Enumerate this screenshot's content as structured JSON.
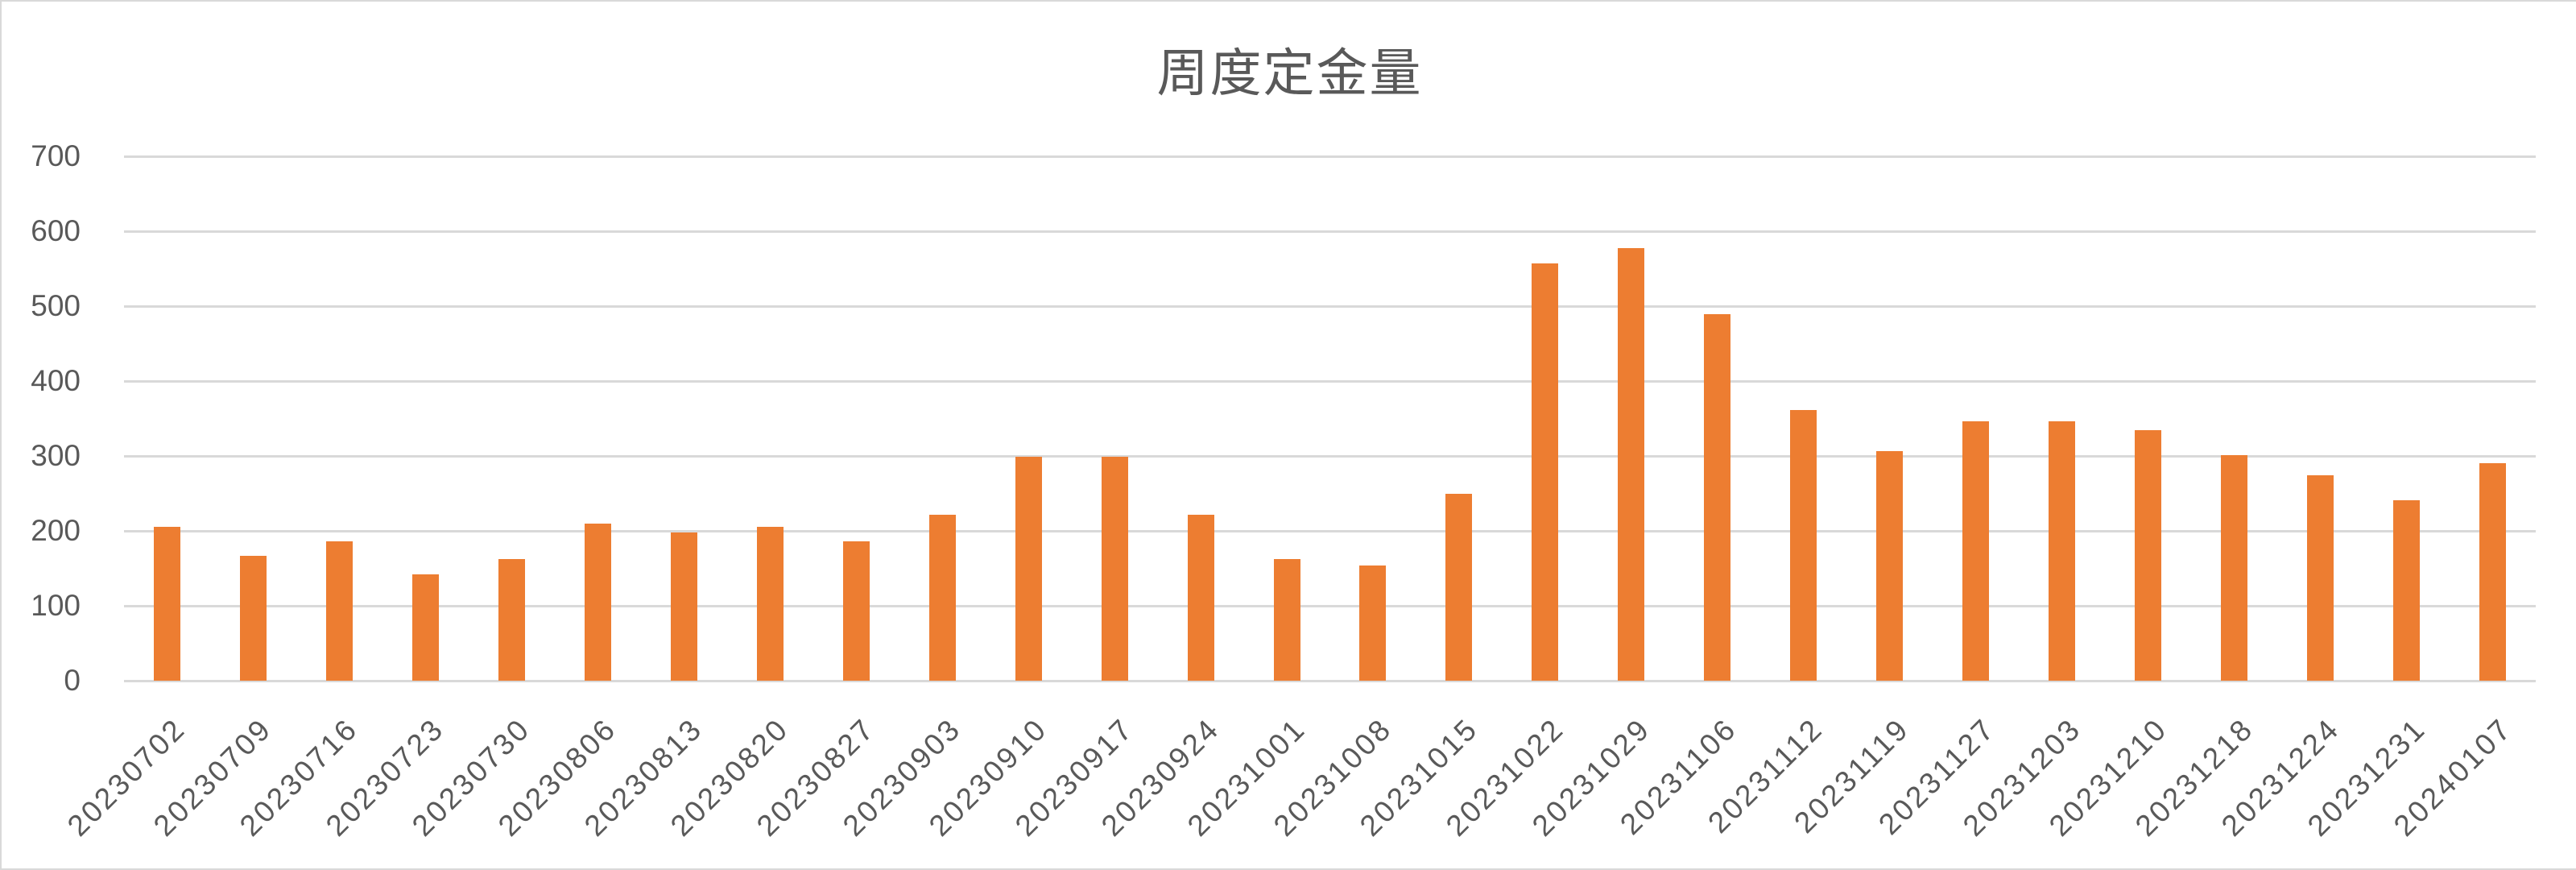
{
  "chart": {
    "title": "周度定金量",
    "bar_color": "#ED7D31",
    "grid_color": "#D9D9D9",
    "text_color": "#595959"
  },
  "chart_data": {
    "type": "bar",
    "title": "周度定金量",
    "xlabel": "",
    "ylabel": "",
    "ylim": [
      0,
      700
    ],
    "yticks": [
      0,
      100,
      200,
      300,
      400,
      500,
      600,
      700
    ],
    "grid": true,
    "legend": null,
    "categories": [
      "20230702",
      "20230709",
      "20230716",
      "20230723",
      "20230730",
      "20230806",
      "20230813",
      "20230820",
      "20230827",
      "20230903",
      "20230910",
      "20230917",
      "20230924",
      "20231001",
      "20231008",
      "20231015",
      "20231022",
      "20231029",
      "20231106",
      "20231112",
      "20231119",
      "20231127",
      "20231203",
      "20231210",
      "20231218",
      "20231224",
      "20231231",
      "20240107"
    ],
    "series": [
      {
        "name": "周度定金量",
        "color": "#ED7D31",
        "values": [
          205,
          167,
          186,
          142,
          162,
          210,
          198,
          205,
          186,
          221,
          299,
          299,
          221,
          162,
          154,
          250,
          557,
          577,
          489,
          361,
          306,
          346,
          346,
          334,
          301,
          274,
          241,
          290
        ]
      }
    ]
  }
}
